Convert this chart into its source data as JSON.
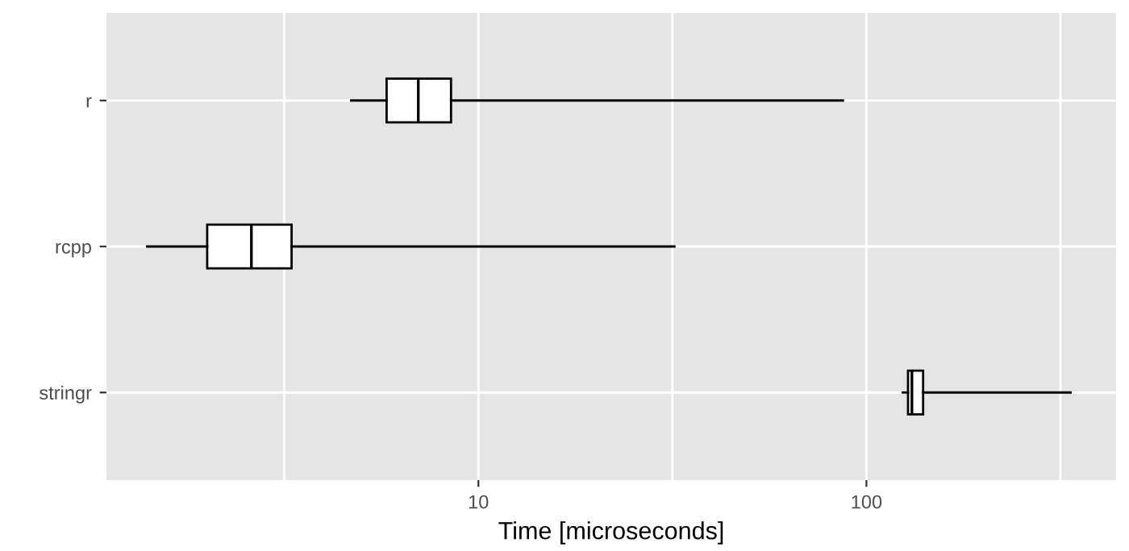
{
  "chart_data": {
    "type": "box",
    "orientation": "horizontal",
    "log": "x",
    "xlabel": "Time [microseconds]",
    "categories": [
      "r",
      "rcpp",
      "stringr"
    ],
    "boxes": [
      {
        "low": 4.7,
        "q1": 5.8,
        "median": 7,
        "q3": 8.5,
        "high": 87
      },
      {
        "low": 1.4,
        "q1": 2,
        "median": 2.6,
        "q3": 3.3,
        "high": 32
      },
      {
        "low": 124,
        "q1": 128,
        "median": 131,
        "q3": 140,
        "high": 336
      }
    ],
    "xlim": [
      1.1,
      440
    ],
    "xticks": [
      {
        "value": 3.162,
        "label": null
      },
      10,
      {
        "value": 31.62,
        "label": null
      },
      100,
      {
        "value": 316.2,
        "label": null
      }
    ],
    "grid": true,
    "color": "#000000"
  }
}
